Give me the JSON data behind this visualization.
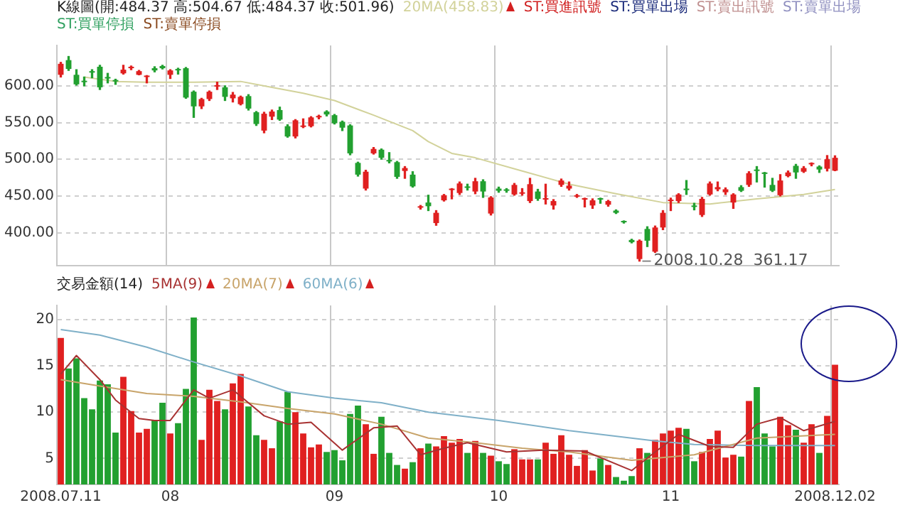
{
  "chart_data": [
    {
      "type": "candlestick",
      "title": "K線圖(開:484.37 高:504.67 低:484.37 收:501.96)",
      "categories": [
        "2008.07.11",
        null,
        null,
        null,
        null,
        null,
        null,
        null,
        null,
        null,
        null,
        null,
        null,
        null,
        "08",
        null,
        null,
        null,
        null,
        null,
        null,
        null,
        null,
        null,
        null,
        null,
        null,
        null,
        null,
        null,
        null,
        null,
        null,
        null,
        null,
        "09",
        null,
        null,
        null,
        null,
        null,
        null,
        null,
        null,
        null,
        null,
        null,
        null,
        null,
        null,
        null,
        null,
        null,
        null,
        null,
        null,
        "10",
        null,
        null,
        null,
        null,
        null,
        null,
        null,
        null,
        null,
        null,
        null,
        null,
        null,
        null,
        null,
        null,
        null,
        null,
        null,
        null,
        null,
        "11",
        null,
        null,
        null,
        null,
        null,
        null,
        null,
        null,
        null,
        null,
        null,
        null,
        null,
        null,
        null,
        null,
        null,
        null,
        null,
        null,
        "2008.12.02"
      ],
      "ohlc": [
        [
          615,
          632,
          612,
          630
        ],
        [
          635,
          640,
          621,
          623
        ],
        [
          615,
          622,
          601,
          602
        ],
        [
          606,
          612,
          600,
          605
        ],
        [
          620,
          622,
          611,
          618
        ],
        [
          626,
          628,
          595,
          598
        ],
        [
          612,
          617,
          604,
          610
        ],
        [
          607,
          609,
          602,
          606
        ],
        [
          617,
          628,
          616,
          622
        ],
        [
          624,
          627,
          622,
          626
        ],
        [
          615,
          621,
          615,
          620
        ],
        [
          612,
          614,
          604,
          613
        ],
        [
          624,
          626,
          619,
          621
        ],
        [
          627,
          628,
          623,
          624
        ],
        [
          615,
          622,
          610,
          621
        ],
        [
          622,
          624,
          616,
          621
        ],
        [
          624,
          625,
          583,
          584
        ],
        [
          592,
          593,
          557,
          572
        ],
        [
          572,
          583,
          569,
          582
        ],
        [
          582,
          593,
          580,
          592
        ],
        [
          599,
          605,
          595,
          600
        ],
        [
          598,
          600,
          580,
          585
        ],
        [
          583,
          591,
          578,
          588
        ],
        [
          575,
          586,
          574,
          585
        ],
        [
          586,
          588,
          567,
          569
        ],
        [
          564,
          565,
          546,
          548
        ],
        [
          539,
          564,
          536,
          562
        ],
        [
          558,
          567,
          554,
          565
        ],
        [
          567,
          571,
          553,
          554
        ],
        [
          545,
          547,
          530,
          531
        ],
        [
          531,
          554,
          529,
          553
        ],
        [
          544,
          555,
          543,
          545
        ],
        [
          545,
          558,
          544,
          557
        ],
        [
          557,
          560,
          555,
          559
        ],
        [
          565,
          566,
          559,
          561
        ],
        [
          560,
          561,
          548,
          549
        ],
        [
          551,
          552,
          539,
          543
        ],
        [
          546,
          547,
          506,
          508
        ],
        [
          495,
          496,
          477,
          479
        ],
        [
          460,
          485,
          458,
          483
        ],
        [
          508,
          516,
          507,
          514
        ],
        [
          513,
          514,
          500,
          502
        ],
        [
          498,
          509,
          495,
          497
        ],
        [
          496,
          497,
          474,
          476
        ],
        [
          484,
          490,
          474,
          488
        ],
        [
          479,
          483,
          462,
          463
        ],
        [
          434,
          437,
          432,
          435
        ],
        [
          441,
          451,
          430,
          436
        ],
        [
          413,
          430,
          410,
          427
        ],
        [
          444,
          452,
          443,
          451
        ],
        [
          458,
          460,
          446,
          459
        ],
        [
          454,
          469,
          452,
          467
        ],
        [
          462,
          466,
          458,
          461
        ],
        [
          456,
          474,
          453,
          470
        ],
        [
          470,
          472,
          448,
          456
        ],
        [
          426,
          449,
          424,
          448
        ],
        [
          460,
          462,
          455,
          457
        ],
        [
          458,
          460,
          455,
          457
        ],
        [
          452,
          467,
          451,
          465
        ],
        [
          453,
          460,
          451,
          454
        ],
        [
          443,
          474,
          441,
          466
        ],
        [
          456,
          459,
          444,
          446
        ],
        [
          445,
          466,
          439,
          446
        ],
        [
          437,
          445,
          432,
          443
        ],
        [
          465,
          473,
          463,
          471
        ],
        [
          460,
          469,
          458,
          464
        ],
        [
          449,
          452,
          448,
          450
        ],
        [
          445,
          447,
          435,
          446
        ],
        [
          437,
          446,
          433,
          444
        ],
        [
          446,
          447,
          440,
          445
        ],
        [
          438,
          444,
          436,
          443
        ],
        [
          430,
          431,
          426,
          427
        ],
        [
          415,
          416,
          413,
          414
        ],
        [
          390,
          391,
          386,
          387
        ],
        [
          364,
          390,
          361.17,
          389
        ],
        [
          405,
          408,
          381,
          389
        ],
        [
          374,
          409,
          373,
          407
        ],
        [
          407,
          430,
          404,
          427
        ],
        [
          443,
          447,
          430,
          444
        ],
        [
          443,
          453,
          441,
          452
        ],
        [
          459,
          471,
          452,
          458
        ],
        [
          436,
          440,
          431,
          435
        ],
        [
          424,
          448,
          422,
          446
        ],
        [
          452,
          469,
          451,
          467
        ],
        [
          459,
          469,
          457,
          462
        ],
        [
          455,
          461,
          452,
          459
        ],
        [
          441,
          453,
          433,
          452
        ],
        [
          462,
          464,
          456,
          457
        ],
        [
          465,
          483,
          463,
          481
        ],
        [
          485,
          490,
          469,
          484
        ],
        [
          481,
          482,
          462,
          480
        ],
        [
          465,
          474,
          456,
          457
        ],
        [
          451,
          479,
          450,
          471
        ],
        [
          477,
          484,
          476,
          482
        ],
        [
          491,
          493,
          474,
          482
        ],
        [
          483,
          490,
          482,
          488
        ],
        [
          493,
          495,
          491,
          494
        ],
        [
          490,
          491,
          482,
          486
        ],
        [
          487,
          505,
          484,
          500
        ],
        [
          484.37,
          504.67,
          484.37,
          501.96
        ]
      ],
      "series": [
        {
          "name": "20MA(458.83)",
          "type": "line",
          "color": "#d2d29a",
          "values": [
            null,
            null,
            null,
            612,
            null,
            null,
            null,
            606,
            null,
            null,
            null,
            605,
            null,
            null,
            null,
            null,
            null,
            605,
            null,
            null,
            null,
            null,
            null,
            606,
            null,
            null,
            null,
            598,
            null,
            null,
            null,
            590,
            null,
            null,
            null,
            580,
            null,
            null,
            null,
            null,
            560,
            null,
            null,
            null,
            null,
            539,
            null,
            524,
            null,
            null,
            508,
            null,
            null,
            502,
            null,
            null,
            null,
            null,
            null,
            484,
            null,
            null,
            null,
            null,
            null,
            466,
            null,
            null,
            null,
            null,
            null,
            453,
            null,
            null,
            null,
            null,
            null,
            441,
            null,
            null,
            null,
            null,
            null,
            439,
            null,
            null,
            null,
            null,
            null,
            446,
            null,
            null,
            null,
            null,
            null,
            452,
            null,
            null,
            null,
            458.83
          ]
        }
      ],
      "annotations": [
        "2008.10.28  361.17",
        "ST:買進訊號",
        "ST:買單出場",
        "ST:賣出訊號",
        "ST:賣單出場",
        "ST:買單停損",
        "ST:賣單停損"
      ],
      "ylim": [
        355,
        655
      ],
      "yticks": [
        {
          "value": 400,
          "label": "400.00"
        },
        {
          "value": 450,
          "label": "450.00"
        },
        {
          "value": 500,
          "label": "500.00"
        },
        {
          "value": 550,
          "label": "550.00"
        },
        {
          "value": 600,
          "label": "600.00"
        }
      ],
      "tick_labels": "y",
      "grid": true,
      "legend": "top left",
      "marker": "none"
    },
    {
      "type": "bar",
      "title": "交易金額(14)",
      "categories": [
        "2008.07.11",
        null,
        null,
        null,
        null,
        null,
        null,
        null,
        null,
        null,
        null,
        null,
        null,
        null,
        "08",
        null,
        null,
        null,
        null,
        null,
        null,
        null,
        null,
        null,
        null,
        null,
        null,
        null,
        null,
        null,
        null,
        null,
        null,
        null,
        null,
        "09",
        null,
        null,
        null,
        null,
        null,
        null,
        null,
        null,
        null,
        null,
        null,
        null,
        null,
        null,
        null,
        null,
        null,
        null,
        null,
        null,
        "10",
        null,
        null,
        null,
        null,
        null,
        null,
        null,
        null,
        null,
        null,
        null,
        null,
        null,
        null,
        null,
        null,
        null,
        null,
        null,
        null,
        null,
        "11",
        null,
        null,
        null,
        null,
        null,
        null,
        null,
        null,
        null,
        null,
        null,
        null,
        null,
        null,
        null,
        null,
        null,
        null,
        null,
        null,
        "2008.12.02"
      ],
      "series": [
        {
          "type": "bar",
          "values": [
            18.0,
            14.7,
            15.8,
            11.5,
            10.3,
            13.4,
            13.0,
            7.8,
            13.8,
            10.1,
            7.8,
            8.2,
            9.1,
            11.0,
            7.7,
            8.8,
            12.5,
            20.2,
            7.0,
            12.4,
            11.2,
            10.3,
            13.1,
            14.1,
            10.6,
            7.5,
            7.0,
            6.1,
            9.0,
            12.2,
            10.0,
            7.7,
            6.2,
            6.5,
            5.7,
            5.9,
            4.8,
            9.8,
            10.7,
            8.7,
            5.5,
            9.5,
            5.6,
            4.3,
            3.9,
            4.6,
            6.1,
            6.6,
            6.3,
            7.4,
            6.7,
            7.1,
            5.6,
            6.9,
            5.6,
            5.3,
            4.7,
            4.4,
            6.0,
            4.9,
            4.9,
            4.9,
            6.7,
            5.5,
            7.5,
            5.4,
            4.2,
            5.9,
            3.7,
            5.0,
            4.3,
            3.0,
            2.6,
            3.1,
            6.1,
            5.6,
            7.0,
            7.7,
            8.0,
            8.3,
            8.2,
            4.7,
            5.7,
            7.1,
            8.0,
            5.1,
            5.4,
            5.2,
            11.2,
            12.7,
            7.7,
            6.3,
            9.5,
            8.6,
            8.1,
            6.7,
            8.7,
            5.6,
            9.6,
            15.1
          ],
          "colors": [
            "#e02020",
            "#22a030",
            "#22a030",
            "#22a030",
            "#22a030",
            "#22a030",
            "#22a030",
            "#22a030",
            "#e02020",
            "#e02020",
            "#e02020",
            "#e02020",
            "#22a030",
            "#22a030",
            "#e02020",
            "#22a030",
            "#22a030",
            "#22a030",
            "#e02020",
            "#e02020",
            "#e02020",
            "#22a030",
            "#e02020",
            "#e02020",
            "#22a030",
            "#22a030",
            "#e02020",
            "#e02020",
            "#22a030",
            "#22a030",
            "#e02020",
            "#e02020",
            "#e02020",
            "#e02020",
            "#22a030",
            "#22a030",
            "#22a030",
            "#22a030",
            "#22a030",
            "#e02020",
            "#e02020",
            "#22a030",
            "#22a030",
            "#22a030",
            "#e02020",
            "#22a030",
            "#e02020",
            "#22a030",
            "#e02020",
            "#e02020",
            "#e02020",
            "#e02020",
            "#22a030",
            "#e02020",
            "#22a030",
            "#e02020",
            "#22a030",
            "#22a030",
            "#e02020",
            "#e02020",
            "#e02020",
            "#22a030",
            "#e02020",
            "#e02020",
            "#e02020",
            "#e02020",
            "#e02020",
            "#e02020",
            "#e02020",
            "#22a030",
            "#e02020",
            "#22a030",
            "#22a030",
            "#22a030",
            "#e02020",
            "#22a030",
            "#e02020",
            "#e02020",
            "#e02020",
            "#e02020",
            "#22a030",
            "#22a030",
            "#e02020",
            "#e02020",
            "#e02020",
            "#e02020",
            "#e02020",
            "#22a030",
            "#e02020",
            "#22a030",
            "#22a030",
            "#22a030",
            "#e02020",
            "#e02020",
            "#22a030",
            "#e02020",
            "#e02020",
            "#22a030",
            "#e02020",
            "#e02020"
          ]
        },
        {
          "name": "5MA(9)",
          "type": "line",
          "color": "#a83232",
          "values": [
            14.1,
            null,
            16.1,
            null,
            null,
            13.5,
            null,
            11.3,
            null,
            null,
            9.3,
            null,
            9.1,
            null,
            9.1,
            null,
            null,
            12.4,
            null,
            11.5,
            null,
            null,
            12.4,
            11.7,
            null,
            null,
            9.6,
            null,
            null,
            8.7,
            null,
            null,
            8.9,
            null,
            null,
            null,
            5.9,
            null,
            null,
            null,
            8.3,
            null,
            null,
            8.5,
            null,
            null,
            5.4,
            null,
            null,
            6.1,
            null,
            null,
            6.7,
            null,
            null,
            null,
            null,
            5.7,
            null,
            null,
            null,
            null,
            5.9,
            null,
            null,
            null,
            null,
            5.8,
            null,
            null,
            null,
            null,
            null,
            3.7,
            null,
            null,
            5.7,
            null,
            null,
            7.6,
            null,
            null,
            null,
            6.3,
            null,
            null,
            6.2,
            null,
            null,
            8.7,
            null,
            null,
            9.4,
            null,
            null,
            8.0,
            null,
            null,
            null,
            9.0
          ]
        },
        {
          "name": "20MA(7)",
          "type": "line",
          "color": "#c8a46a",
          "values": [
            13.5,
            null,
            null,
            null,
            null,
            12.8,
            null,
            null,
            null,
            null,
            null,
            12.0,
            null,
            null,
            null,
            null,
            null,
            11.7,
            null,
            null,
            null,
            null,
            null,
            11.1,
            null,
            null,
            null,
            null,
            null,
            10.4,
            null,
            null,
            null,
            null,
            null,
            9.8,
            null,
            null,
            null,
            null,
            null,
            8.7,
            null,
            null,
            null,
            null,
            null,
            7.2,
            null,
            null,
            null,
            null,
            null,
            6.7,
            null,
            null,
            null,
            null,
            null,
            6.1,
            null,
            null,
            null,
            null,
            null,
            5.7,
            null,
            null,
            null,
            null,
            null,
            null,
            null,
            4.8,
            null,
            null,
            null,
            null,
            null,
            null,
            null,
            5.4,
            null,
            null,
            null,
            null,
            null,
            null,
            null,
            7.2,
            null,
            null,
            null,
            null,
            null,
            null,
            null,
            null,
            null,
            7.6
          ]
        },
        {
          "name": "60MA(6)",
          "type": "line",
          "color": "#7fb0c8",
          "values": [
            18.9,
            null,
            null,
            null,
            null,
            18.3,
            null,
            null,
            null,
            null,
            null,
            17.0,
            null,
            null,
            null,
            null,
            null,
            15.4,
            null,
            null,
            null,
            null,
            null,
            13.9,
            null,
            null,
            null,
            null,
            null,
            12.2,
            null,
            null,
            null,
            null,
            null,
            11.5,
            null,
            null,
            null,
            null,
            null,
            11.0,
            null,
            null,
            null,
            null,
            null,
            10.0,
            null,
            null,
            null,
            null,
            null,
            null,
            null,
            null,
            9.1,
            null,
            null,
            null,
            null,
            null,
            null,
            null,
            null,
            8.0,
            null,
            null,
            null,
            null,
            null,
            null,
            null,
            null,
            null,
            null,
            6.9,
            null,
            null,
            null,
            null,
            6.5,
            null,
            null,
            null,
            null,
            null,
            null,
            null,
            6.4,
            null,
            null,
            null,
            null,
            null,
            null,
            null,
            null,
            null,
            6.4
          ]
        }
      ],
      "ylim": [
        2.2,
        21.5
      ],
      "yticks": [
        5,
        10,
        15,
        20
      ],
      "grid": true,
      "legend": "top left",
      "marker": "none"
    }
  ]
}
